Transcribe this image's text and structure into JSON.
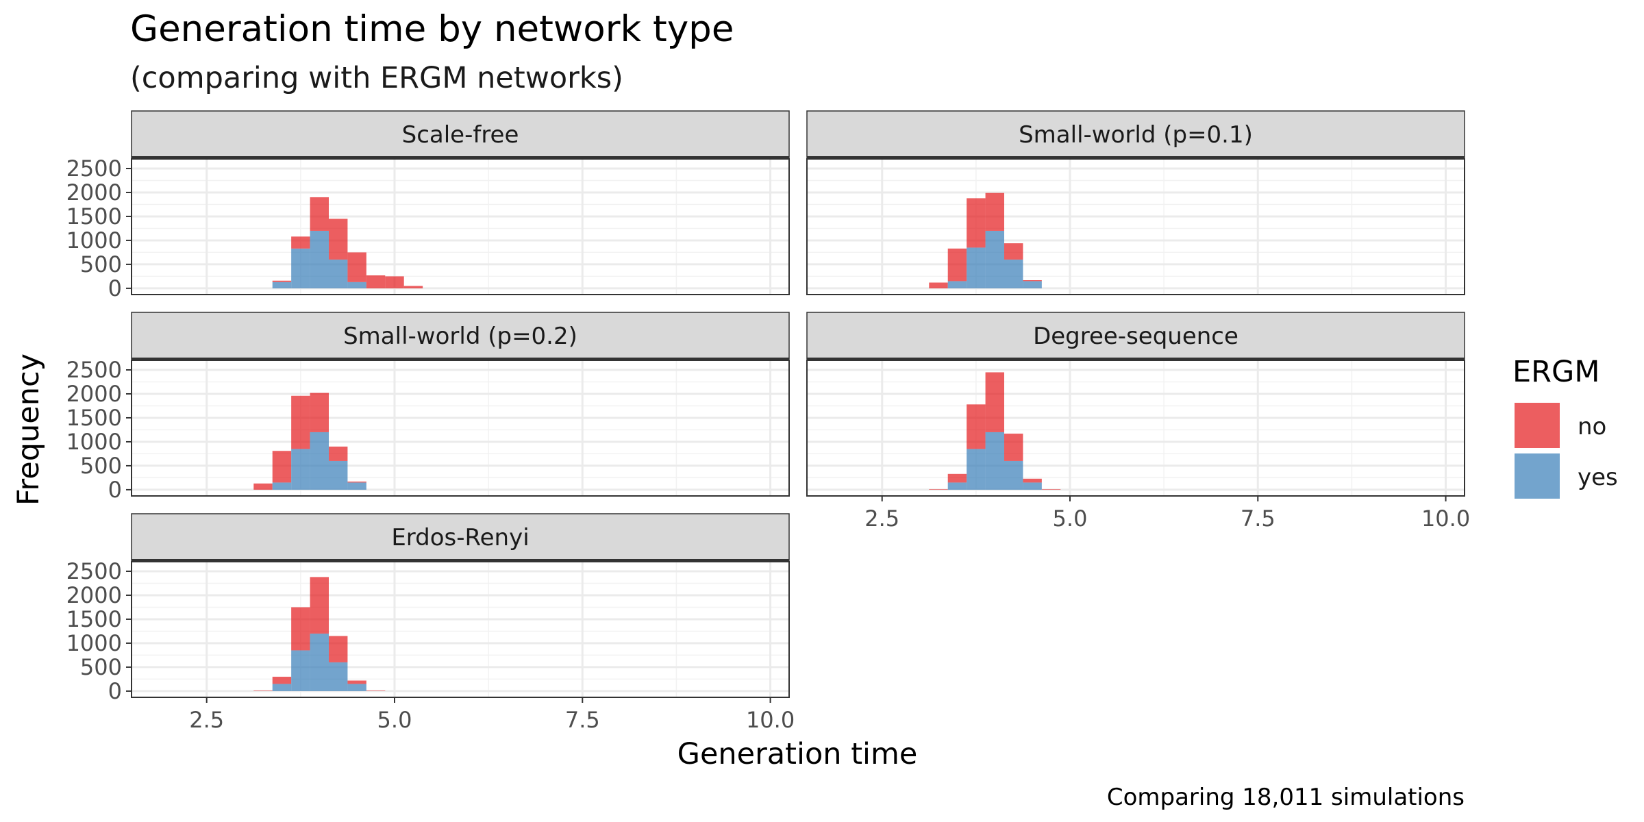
{
  "chart_data": {
    "type": "bar",
    "title": "Generation time by network type",
    "subtitle": "(comparing with ERGM networks)",
    "xlabel": "Generation time",
    "ylabel": "Frequency",
    "caption": "Comparing 18,011 simulations",
    "xlim": [
      1.5,
      10.25
    ],
    "ylim": [
      -130,
      2700
    ],
    "xticks": [
      2.5,
      5.0,
      7.5,
      10.0
    ],
    "xtick_labels": [
      "2.5",
      "5.0",
      "7.5",
      "10.0"
    ],
    "yticks": [
      0,
      500,
      1000,
      1500,
      2000,
      2500
    ],
    "ytick_labels": [
      "0",
      "500",
      "1000",
      "1500",
      "2000",
      "2500"
    ],
    "grid": true,
    "stacked": true,
    "bin_width": 0.25,
    "legend": {
      "title": "ERGM",
      "placement": "right",
      "entries": [
        {
          "label": "no",
          "color": "#E41A1C"
        },
        {
          "label": "yes",
          "color": "#377EB8"
        }
      ]
    },
    "facets": [
      {
        "label": "Scale-free",
        "bins": [
          3.5,
          3.75,
          4.0,
          4.25,
          4.5,
          4.75,
          5.0,
          5.25
        ],
        "series": [
          {
            "name": "yes",
            "values": [
              130,
              830,
              1200,
              600,
              130,
              0,
              0,
              0
            ]
          },
          {
            "name": "no",
            "values": [
              30,
              250,
              700,
              850,
              620,
              270,
              250,
              50
            ]
          }
        ]
      },
      {
        "label": "Small-world (p=0.1)",
        "bins": [
          3.25,
          3.5,
          3.75,
          4.0,
          4.25,
          4.5,
          4.75
        ],
        "series": [
          {
            "name": "yes",
            "values": [
              0,
              150,
              850,
              1200,
              600,
              150,
              0
            ]
          },
          {
            "name": "no",
            "values": [
              120,
              680,
              1030,
              790,
              340,
              20,
              0
            ]
          }
        ]
      },
      {
        "label": "Small-world (p=0.2)",
        "bins": [
          3.25,
          3.5,
          3.75,
          4.0,
          4.25,
          4.5,
          4.75
        ],
        "series": [
          {
            "name": "yes",
            "values": [
              0,
              150,
              850,
              1200,
              600,
              150,
              0
            ]
          },
          {
            "name": "no",
            "values": [
              130,
              660,
              1110,
              820,
              300,
              20,
              0
            ]
          }
        ]
      },
      {
        "label": "Degree-sequence",
        "bins": [
          3.25,
          3.5,
          3.75,
          4.0,
          4.25,
          4.5,
          4.75
        ],
        "series": [
          {
            "name": "yes",
            "values": [
              0,
              150,
              850,
              1200,
              600,
              150,
              0
            ]
          },
          {
            "name": "no",
            "values": [
              10,
              180,
              930,
              1250,
              570,
              80,
              10
            ]
          }
        ]
      },
      {
        "label": "Erdos-Renyi",
        "bins": [
          3.25,
          3.5,
          3.75,
          4.0,
          4.25,
          4.5,
          4.75
        ],
        "series": [
          {
            "name": "yes",
            "values": [
              0,
              150,
              850,
              1200,
              600,
              150,
              0
            ]
          },
          {
            "name": "no",
            "values": [
              10,
              150,
              900,
              1180,
              550,
              70,
              10
            ]
          }
        ]
      }
    ]
  }
}
